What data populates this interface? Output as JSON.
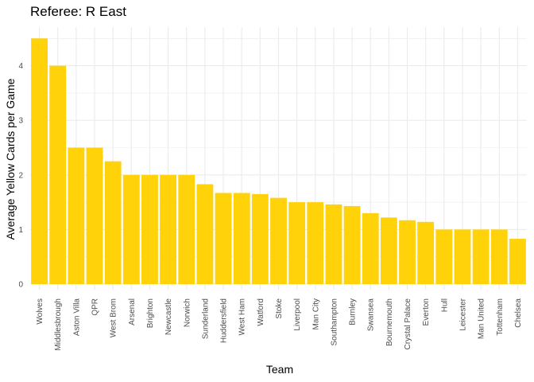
{
  "chart_data": {
    "type": "bar",
    "title": "Referee: R East",
    "xlabel": "Team",
    "ylabel": "Average Yellow Cards per Game",
    "ylim": [
      0,
      4.7
    ],
    "yticks": [
      0,
      1,
      2,
      3,
      4
    ],
    "grid": true,
    "bar_color": "#FFD20A",
    "grid_color": "#EBEBEB",
    "categories": [
      "Wolves",
      "Middlesbrough",
      "Aston Villa",
      "QPR",
      "West Brom",
      "Arsenal",
      "Brighton",
      "Newcastle",
      "Norwich",
      "Sunderland",
      "Huddersfield",
      "West Ham",
      "Watford",
      "Stoke",
      "Liverpool",
      "Man City",
      "Southampton",
      "Burnley",
      "Swansea",
      "Bournemouth",
      "Crystal Palace",
      "Everton",
      "Hull",
      "Leicester",
      "Man United",
      "Tottenham",
      "Chelsea"
    ],
    "values": [
      4.5,
      4.0,
      2.5,
      2.5,
      2.25,
      2.0,
      2.0,
      2.0,
      2.0,
      1.83,
      1.67,
      1.67,
      1.65,
      1.58,
      1.5,
      1.5,
      1.46,
      1.43,
      1.3,
      1.22,
      1.17,
      1.14,
      1.0,
      1.0,
      1.0,
      1.0,
      0.83
    ]
  }
}
